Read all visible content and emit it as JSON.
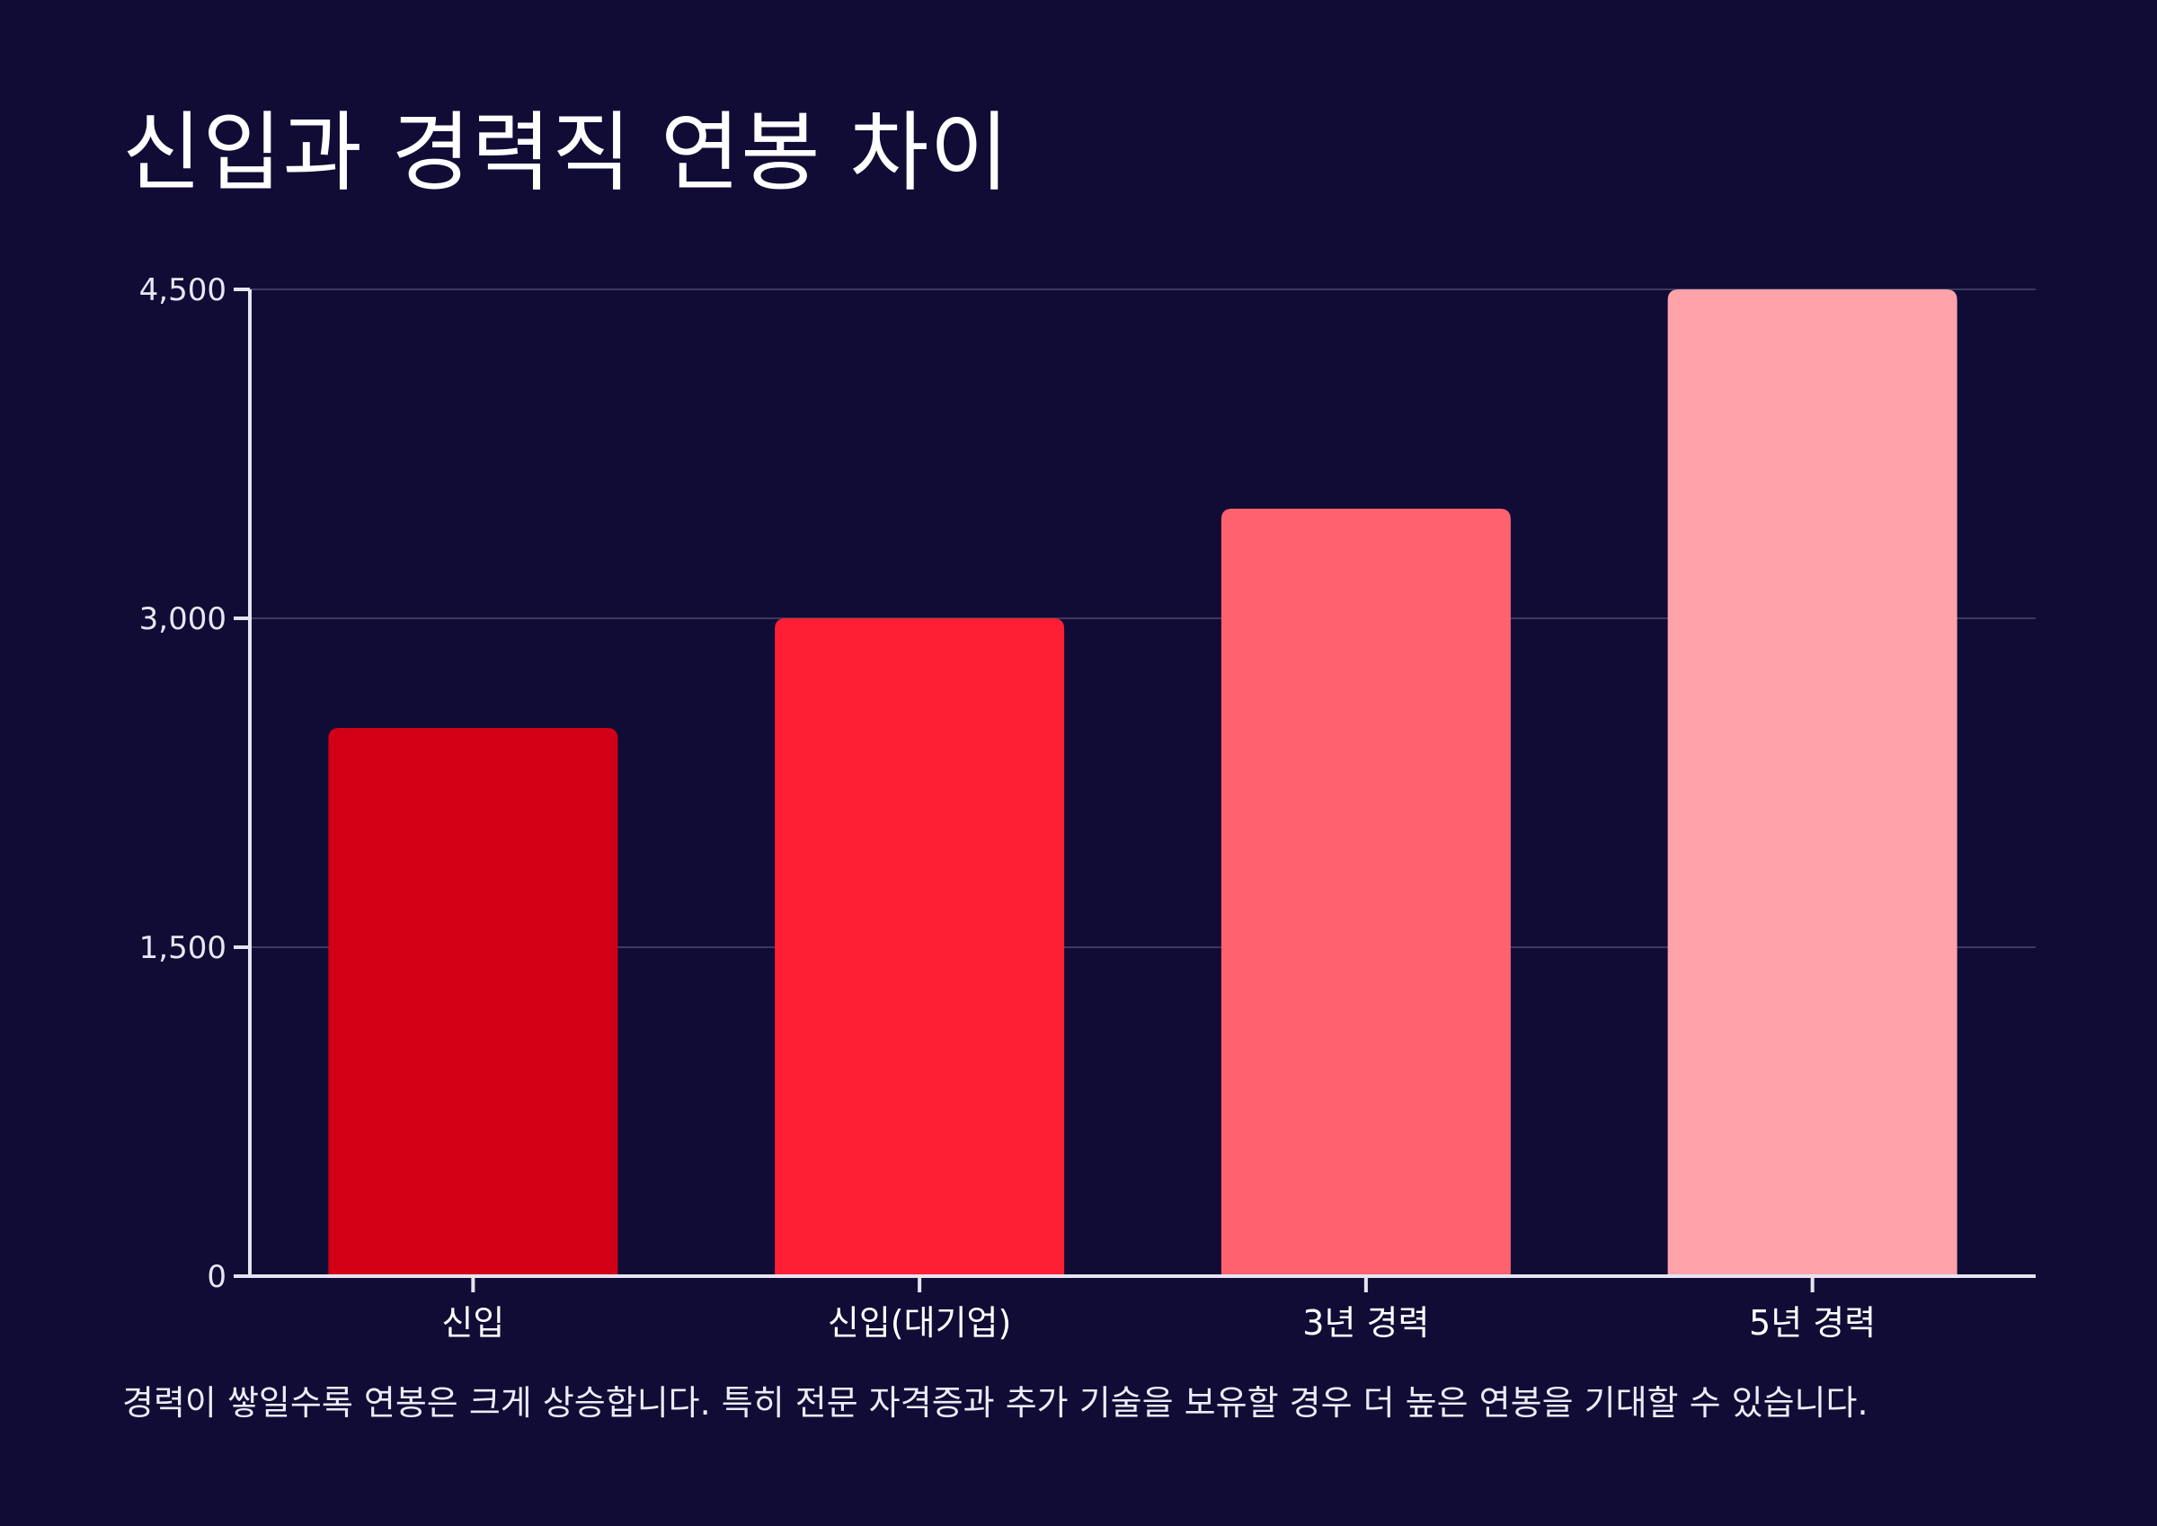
{
  "colors": {
    "background": "#100c36",
    "axis": "#e6e4f2",
    "grid": "#3d3960"
  },
  "chart_data": {
    "type": "bar",
    "title": "신입과 경력직 연봉 차이",
    "caption": "경력이 쌓일수록 연봉은 크게 상승합니다. 특히 전문 자격증과 추가 기술을 보유할 경우 더 높은 연봉을 기대할 수 있습니다.",
    "xlabel": "",
    "ylabel": "",
    "categories": [
      "신입",
      "신입(대기업)",
      "3년 경력",
      "5년 경력"
    ],
    "values": [
      2500,
      3000,
      3500,
      4500
    ],
    "bar_colors": [
      "#d20016",
      "#ff1f35",
      "#ff616f",
      "#ffa2aa"
    ],
    "yticks": [
      0,
      1500,
      3000,
      4500
    ],
    "ytick_labels": [
      "0",
      "1,500",
      "3,000",
      "4,500"
    ],
    "ylim": [
      0,
      4500
    ],
    "grid": true,
    "legend": "none"
  }
}
